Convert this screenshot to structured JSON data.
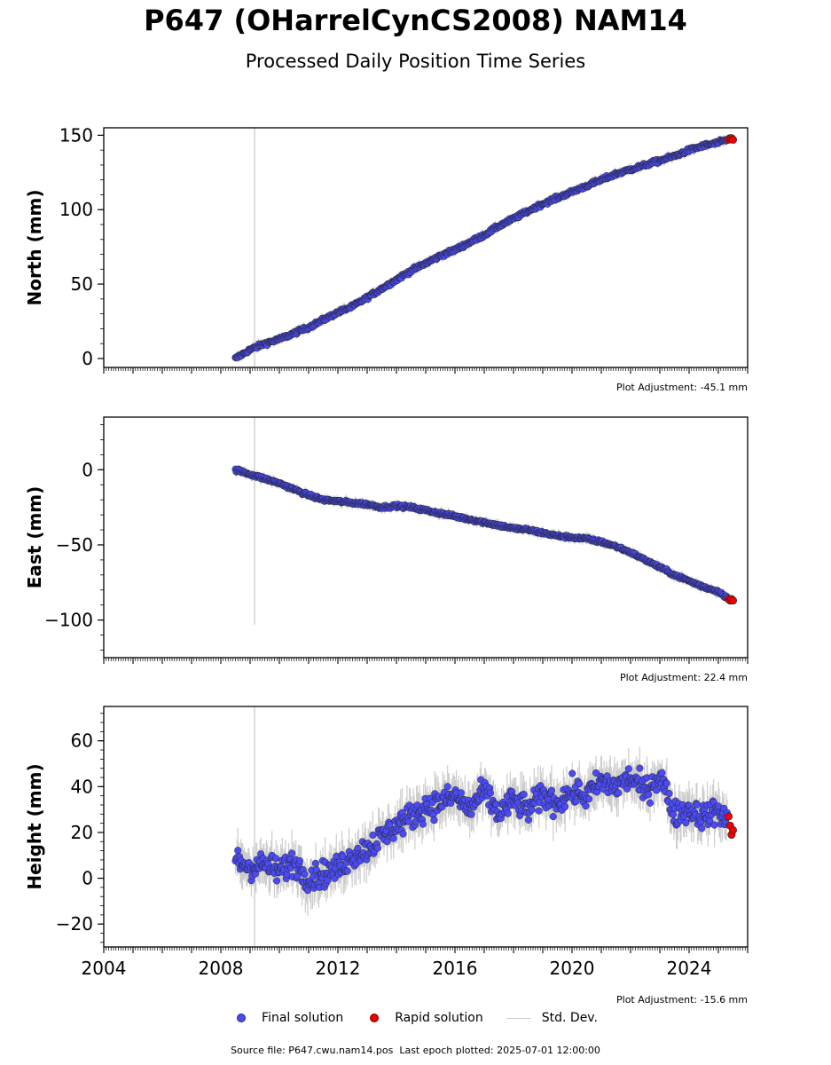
{
  "title": "P647 (OHarrelCynCS2008) NAM14",
  "subtitle": "Processed Daily Position Time Series",
  "footer": {
    "source_file": "Source file: P647.cwu.nam14.pos",
    "last_epoch": "Last epoch plotted: 2025-07-01 12:00:00"
  },
  "legend": {
    "final": "Final solution",
    "rapid": "Rapid solution",
    "stddev": "Std. Dev."
  },
  "colors": {
    "final": "#4b4bf5",
    "rapid": "#ee0000",
    "stddev": "#cccccc",
    "marker_edge": "#222222"
  },
  "chart_data": [
    {
      "type": "scatter",
      "panel": "north",
      "ylabel": "North (mm)",
      "adjustment": "Plot Adjustment: -45.1 mm",
      "xlim": [
        2004,
        2026
      ],
      "ylim": [
        -6,
        155
      ],
      "yticks": [
        0,
        50,
        100,
        150
      ],
      "show_xtick_labels": false,
      "vertical_marker_year": 2009.15,
      "series": [
        {
          "name": "Final solution",
          "x": [
            2008.5,
            2009.0,
            2009.5,
            2010.0,
            2010.5,
            2011.0,
            2011.5,
            2012.0,
            2012.5,
            2013.0,
            2013.5,
            2014.0,
            2014.5,
            2015.0,
            2015.5,
            2016.0,
            2016.5,
            2017.0,
            2017.5,
            2018.0,
            2018.5,
            2019.0,
            2019.5,
            2020.0,
            2020.5,
            2021.0,
            2021.5,
            2022.0,
            2022.5,
            2023.0,
            2023.5,
            2024.0,
            2024.5,
            2025.0,
            2025.3
          ],
          "y": [
            0,
            6,
            10,
            13,
            17,
            21,
            26,
            31,
            35,
            41,
            47,
            53,
            59,
            64,
            69,
            73,
            78,
            83,
            89,
            94,
            99,
            104,
            108,
            112,
            116,
            120,
            124,
            127,
            130,
            133,
            136,
            140,
            143,
            145,
            147
          ]
        },
        {
          "name": "Rapid solution",
          "x": [
            2025.35,
            2025.4,
            2025.45,
            2025.5
          ],
          "y": [
            147,
            148,
            148,
            147
          ]
        }
      ]
    },
    {
      "type": "scatter",
      "panel": "east",
      "ylabel": "East (mm)",
      "adjustment": "Plot Adjustment: 22.4 mm",
      "xlim": [
        2004,
        2026
      ],
      "ylim": [
        -125,
        35
      ],
      "yticks": [
        -100,
        -50,
        0
      ],
      "show_xtick_labels": false,
      "vertical_marker_year": 2009.15,
      "series": [
        {
          "name": "Final solution",
          "x": [
            2008.5,
            2009.0,
            2009.5,
            2010.0,
            2010.5,
            2011.0,
            2011.5,
            2012.0,
            2012.5,
            2013.0,
            2013.5,
            2014.0,
            2014.5,
            2015.0,
            2015.5,
            2016.0,
            2016.5,
            2017.0,
            2017.5,
            2018.0,
            2018.5,
            2019.0,
            2019.5,
            2020.0,
            2020.5,
            2021.0,
            2021.5,
            2022.0,
            2022.5,
            2023.0,
            2023.5,
            2024.0,
            2024.5,
            2025.0,
            2025.3
          ],
          "y": [
            0,
            -3,
            -6,
            -9,
            -13,
            -17,
            -20,
            -21,
            -22,
            -23,
            -25,
            -24,
            -25,
            -27,
            -29,
            -31,
            -33,
            -35,
            -37,
            -39,
            -40,
            -42,
            -44,
            -45,
            -46,
            -48,
            -51,
            -55,
            -60,
            -65,
            -70,
            -74,
            -78,
            -81,
            -85
          ]
        },
        {
          "name": "Rapid solution",
          "x": [
            2025.35,
            2025.4,
            2025.45,
            2025.5
          ],
          "y": [
            -86,
            -87,
            -86,
            -87
          ]
        }
      ]
    },
    {
      "type": "scatter",
      "panel": "height",
      "ylabel": "Height (mm)",
      "adjustment": "Plot Adjustment: -15.6 mm",
      "xlim": [
        2004,
        2026
      ],
      "ylim": [
        -30,
        75
      ],
      "yticks": [
        -20,
        0,
        20,
        40,
        60
      ],
      "xticks": [
        2004,
        2008,
        2012,
        2016,
        2020,
        2024
      ],
      "show_xtick_labels": true,
      "vertical_marker_year": 2009.15,
      "series": [
        {
          "name": "Final solution",
          "x": [
            2008.5,
            2009.0,
            2009.5,
            2010.0,
            2010.5,
            2011.0,
            2011.5,
            2012.0,
            2012.5,
            2013.0,
            2013.5,
            2014.0,
            2014.5,
            2015.0,
            2015.5,
            2016.0,
            2016.5,
            2017.0,
            2017.5,
            2018.0,
            2018.5,
            2019.0,
            2019.5,
            2020.0,
            2020.5,
            2021.0,
            2021.5,
            2022.0,
            2022.5,
            2023.0,
            2023.5,
            2024.0,
            2024.5,
            2025.0,
            2025.3
          ],
          "y": [
            8,
            5,
            6,
            3,
            7,
            0,
            2,
            4,
            10,
            13,
            18,
            23,
            27,
            31,
            33,
            36,
            30,
            38,
            28,
            34,
            30,
            36,
            33,
            38,
            36,
            42,
            40,
            44,
            38,
            45,
            28,
            30,
            27,
            30,
            24
          ]
        },
        {
          "name": "Rapid solution",
          "x": [
            2025.35,
            2025.4,
            2025.45,
            2025.5
          ],
          "y": [
            27,
            23,
            19,
            21
          ]
        }
      ]
    }
  ]
}
